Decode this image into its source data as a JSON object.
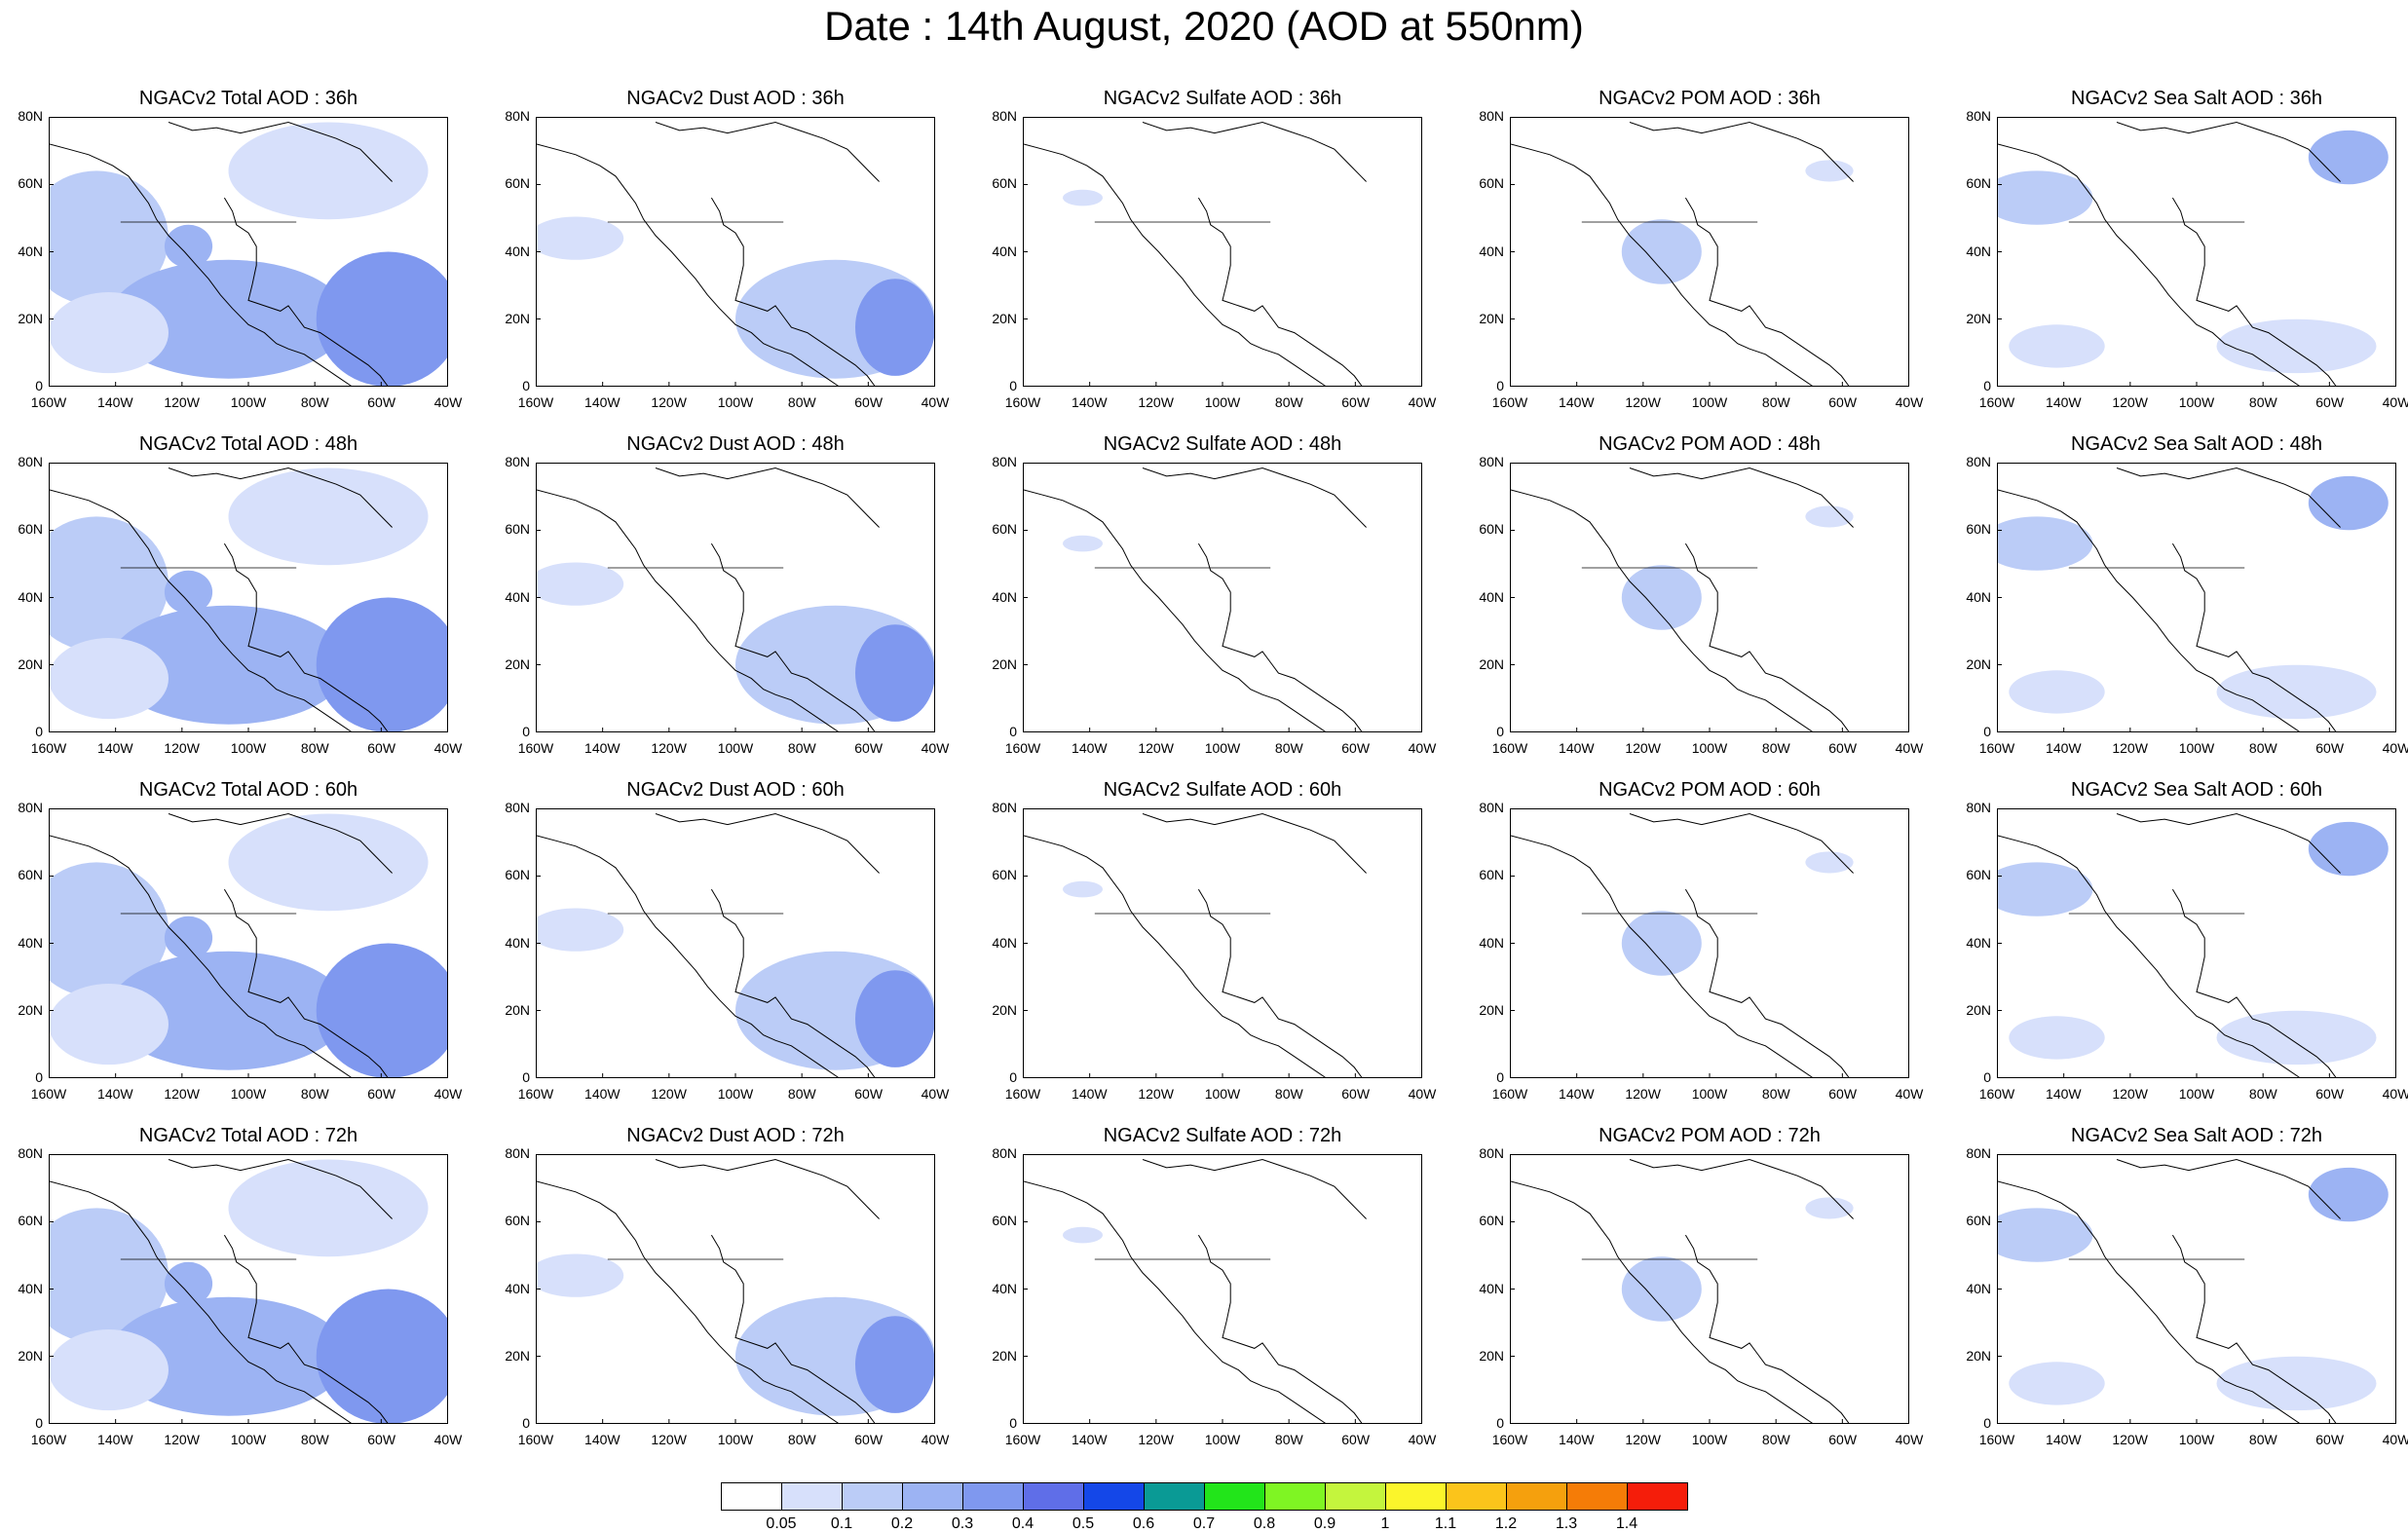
{
  "title": "Date : 14th August, 2020 (AOD at 550nm)",
  "panels": {
    "row_36h": [
      "NGACv2 Total AOD : 36h",
      "NGACv2 Dust AOD : 36h",
      "NGACv2 Sulfate AOD : 36h",
      "NGACv2 POM AOD : 36h",
      "NGACv2 Sea Salt AOD : 36h"
    ],
    "row_48h": [
      "NGACv2 Total AOD : 48h",
      "NGACv2 Dust AOD : 48h",
      "NGACv2 Sulfate AOD : 48h",
      "NGACv2 POM AOD : 48h",
      "NGACv2 Sea Salt AOD : 48h"
    ],
    "row_60h": [
      "NGACv2 Total AOD : 60h",
      "NGACv2 Dust AOD : 60h",
      "NGACv2 Sulfate AOD : 60h",
      "NGACv2 POM AOD : 60h",
      "NGACv2 Sea Salt AOD : 60h"
    ],
    "row_72h": [
      "NGACv2 Total AOD : 72h",
      "NGACv2 Dust AOD : 72h",
      "NGACv2 Sulfate AOD : 72h",
      "NGACv2 POM AOD : 72h",
      "NGACv2 Sea Salt  AOD : 72h"
    ]
  },
  "lat_ticks": [
    "80N",
    "60N",
    "40N",
    "20N",
    "0"
  ],
  "lon_ticks": [
    "160W",
    "140W",
    "120W",
    "100W",
    "80W",
    "60W",
    "40W"
  ],
  "colorbar": {
    "labels": [
      "0.05",
      "0.1",
      "0.2",
      "0.3",
      "0.4",
      "0.5",
      "0.6",
      "0.7",
      "0.8",
      "0.9",
      "1",
      "1.1",
      "1.2",
      "1.3",
      "1.4"
    ],
    "colors": [
      "#ffffff",
      "#d7e0fb",
      "#bbccf7",
      "#9cb3f3",
      "#7f98ef",
      "#5f6ee8",
      "#1447e8",
      "#0a9a95",
      "#22e51a",
      "#7ff523",
      "#c4f53d",
      "#fbf52b",
      "#fbc41b",
      "#f5a00d",
      "#f57c07",
      "#f51d0a"
    ]
  },
  "chart_data": {
    "type": "heatmap",
    "title": "Date : 14th August, 2020 (AOD at 550nm)",
    "lat_range": [
      "0",
      "80N"
    ],
    "lon_range": [
      "160W",
      "40W"
    ],
    "forecast_hours": [
      "36h",
      "48h",
      "60h",
      "72h"
    ],
    "species": [
      "Total",
      "Dust",
      "Sulfate",
      "POM",
      "Sea Salt"
    ],
    "color_levels": [
      0.05,
      0.1,
      0.2,
      0.3,
      0.4,
      0.5,
      0.6,
      0.7,
      0.8,
      0.9,
      1,
      1.1,
      1.2,
      1.3,
      1.4
    ]
  }
}
